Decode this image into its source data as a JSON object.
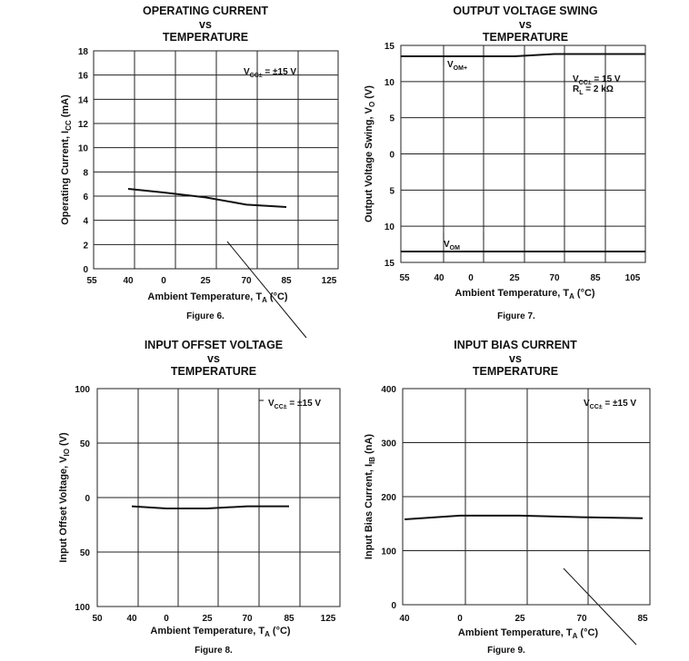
{
  "chart_data": [
    {
      "type": "line",
      "title": [
        "OPERATING CURRENT",
        "vs",
        "TEMPERATURE"
      ],
      "xlabel": "Ambient Temperature, T",
      "xlabel_sub": "A",
      "xlabel_unit": " (°C)",
      "ylabel": "Operating Current, I",
      "ylabel_sub": "CC",
      "ylabel_unit": " (mA)",
      "caption": "Figure 6.",
      "x_ticks": [
        "55",
        "40",
        "0",
        "25",
        "70",
        "85",
        "125"
      ],
      "y_ticks": [
        "0",
        "2",
        "4",
        "6",
        "8",
        "10",
        "12",
        "14",
        "16",
        "18"
      ],
      "ylim": [
        0,
        18
      ],
      "grid": true,
      "series": [
        {
          "x": [
            "40",
            "0",
            "25",
            "70",
            "85"
          ],
          "values": [
            6.6,
            6.3,
            5.9,
            5.3,
            5.1
          ]
        }
      ],
      "annotations": [
        {
          "text": "V",
          "sub": "CC±",
          "rest": " = ±15 V"
        }
      ]
    },
    {
      "type": "line",
      "title": [
        "OUTPUT VOLTAGE SWING",
        "vs",
        "TEMPERATURE"
      ],
      "xlabel": "Ambient Temperature, T",
      "xlabel_sub": "A",
      "xlabel_unit": " (°C)",
      "ylabel": "Output Voltage Swing, V",
      "ylabel_sub": "O",
      "ylabel_unit": " (V)",
      "caption": "Figure 7.",
      "x_ticks": [
        "55",
        "40",
        "0",
        "25",
        "70",
        "85",
        "105"
      ],
      "y_ticks": [
        "15",
        "10",
        "5",
        "0",
        "5",
        "10",
        "15"
      ],
      "ylim": [
        -15,
        15
      ],
      "grid": true,
      "series": [
        {
          "name": "VOM+",
          "x": [
            "55",
            "40",
            "0",
            "25",
            "70",
            "85",
            "105"
          ],
          "values": [
            13.5,
            13.5,
            13.5,
            13.5,
            13.8,
            13.8,
            13.8
          ]
        },
        {
          "name": "VOM",
          "x": [
            "55",
            "40",
            "0",
            "25",
            "70",
            "85",
            "105"
          ],
          "values": [
            -13.5,
            -13.5,
            -13.5,
            -13.5,
            -13.5,
            -13.5,
            -13.5
          ]
        }
      ],
      "series_labels": [
        {
          "text": "V",
          "sub": "OM+"
        },
        {
          "text": "V",
          "sub": "OM"
        }
      ],
      "annotations": [
        {
          "text": "V",
          "sub": "CC±",
          "rest": " = 15 V"
        },
        {
          "text": "R",
          "sub": "L",
          "rest": " = 2 kΩ"
        }
      ]
    },
    {
      "type": "line",
      "title": [
        "INPUT OFFSET VOLTAGE",
        "vs",
        "TEMPERATURE"
      ],
      "xlabel": "Ambient Temperature, T",
      "xlabel_sub": "A",
      "xlabel_unit": " (°C)",
      "ylabel": "Input Offset Voltage,  V",
      "ylabel_sub": "IO",
      "ylabel_unit": " (V)",
      "caption": "Figure 8.",
      "x_ticks": [
        "50",
        "40",
        "0",
        "25",
        "70",
        "85",
        "125"
      ],
      "y_ticks": [
        "100",
        "50",
        "0",
        "50",
        "100"
      ],
      "ylim": [
        -100,
        100
      ],
      "grid": true,
      "series": [
        {
          "x": [
            "40",
            "0",
            "25",
            "70",
            "85"
          ],
          "values": [
            -8,
            -10,
            -10,
            -8,
            -8
          ]
        }
      ],
      "annotations": [
        {
          "text": "V",
          "sub": "CC±",
          "rest": " = ±15 V"
        }
      ]
    },
    {
      "type": "line",
      "title": [
        "INPUT BIAS CURRENT",
        "vs",
        "TEMPERATURE"
      ],
      "xlabel": "Ambient Temperature, T",
      "xlabel_sub": "A",
      "xlabel_unit": " (°C)",
      "ylabel": "Input Bias Current, I",
      "ylabel_sub": "IB",
      "ylabel_unit": " (nA)",
      "caption": "Figure 9.",
      "x_ticks": [
        "40",
        "0",
        "25",
        "70",
        "85"
      ],
      "y_ticks": [
        "0",
        "100",
        "200",
        "300",
        "400"
      ],
      "ylim": [
        0,
        400
      ],
      "grid": true,
      "series": [
        {
          "x": [
            "40",
            "0",
            "25",
            "70",
            "85"
          ],
          "values": [
            158,
            165,
            165,
            162,
            160
          ]
        }
      ],
      "annotations": [
        {
          "text": "V",
          "sub": "CC±",
          "rest": " = ±15 V"
        }
      ]
    }
  ]
}
